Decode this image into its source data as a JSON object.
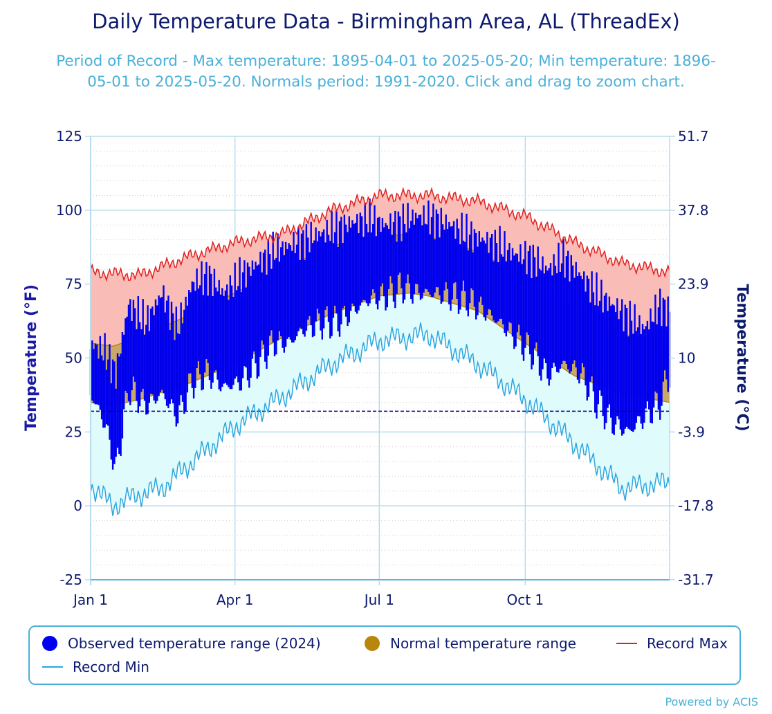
{
  "title": "Daily Temperature Data - Birmingham Area, AL (ThreadEx)",
  "subtitle": "Period of Record - Max temperature: 1895-04-01 to 2025-05-20; Min temperature: 1896-05-01 to 2025-05-20. Normals period: 1991-2020. Click and drag to zoom chart.",
  "credit": "Powered by ACIS",
  "colors": {
    "observed": "#0000ee",
    "normal_fill": "#c8a86b",
    "normal_border": "#b8860b",
    "record_max": "#e02020",
    "record_max_fill": "#f9bcb6",
    "record_min": "#2ba6df",
    "record_min_fill": "#dffbfb",
    "freezing_line": "#00008b",
    "axis_text": "#0d1a6e",
    "grid": "#b8dcec"
  },
  "legend": {
    "observed": "Observed temperature range (2024)",
    "normal": "Normal temperature range",
    "record_max": "Record Max",
    "record_min": "Record Min"
  },
  "chart_data": {
    "type": "area",
    "title": "Daily Temperature Data - Birmingham Area, AL (ThreadEx)",
    "ylabel": "Temperature (°F)",
    "ylabel_right": "Temperature (°C)",
    "ylim": [
      -25,
      125
    ],
    "y_ticks": [
      "125",
      "100",
      "75",
      "50",
      "25",
      "0",
      "-25"
    ],
    "y_ticks_right": [
      "51.7",
      "37.8",
      "23.9",
      "10",
      "-3.9",
      "-17.8",
      "-31.7"
    ],
    "x_ticks": [
      "Jan 1",
      "Apr 1",
      "Jul 1",
      "Oct 1"
    ],
    "x_range": [
      "2024-01-01",
      "2024-12-31"
    ],
    "freezing_line": 32,
    "grid": true,
    "legend_position": "bottom",
    "series": [
      {
        "name": "Record Max",
        "type": "line",
        "dates": [
          "2024-01-01",
          "2024-02-01",
          "2024-03-01",
          "2024-04-01",
          "2024-05-01",
          "2024-06-01",
          "2024-07-01",
          "2024-08-01",
          "2024-09-01",
          "2024-10-01",
          "2024-11-01",
          "2024-12-01",
          "2024-12-31"
        ],
        "values": [
          79,
          78,
          84,
          89,
          92,
          100,
          105,
          105,
          103,
          98,
          89,
          82,
          79
        ]
      },
      {
        "name": "Record Min",
        "type": "line",
        "dates": [
          "2024-01-01",
          "2024-01-15",
          "2024-02-01",
          "2024-02-15",
          "2024-03-01",
          "2024-04-01",
          "2024-05-01",
          "2024-06-01",
          "2024-07-01",
          "2024-08-01",
          "2024-09-01",
          "2024-10-01",
          "2024-11-01",
          "2024-12-01",
          "2024-12-31"
        ],
        "values": [
          7,
          0,
          4,
          6,
          13,
          27,
          37,
          48,
          56,
          58,
          48,
          36,
          21,
          6,
          8
        ]
      },
      {
        "name": "Normal temperature range",
        "type": "range",
        "dates": [
          "2024-01-01",
          "2024-01-15",
          "2024-02-01",
          "2024-03-01",
          "2024-04-01",
          "2024-05-01",
          "2024-06-01",
          "2024-07-01",
          "2024-07-20",
          "2024-08-01",
          "2024-09-01",
          "2024-10-01",
          "2024-11-01",
          "2024-12-01",
          "2024-12-31"
        ],
        "low": [
          35,
          34,
          36,
          41,
          48,
          57,
          65,
          71,
          72,
          71,
          66,
          55,
          44,
          38,
          35
        ],
        "high": [
          55,
          54,
          57,
          64,
          72,
          80,
          88,
          91,
          92,
          91,
          86,
          77,
          66,
          58,
          55
        ]
      },
      {
        "name": "Observed temperature range (2024)",
        "type": "range",
        "dates": [
          "2024-01-01",
          "2024-01-10",
          "2024-01-17",
          "2024-01-25",
          "2024-02-05",
          "2024-02-15",
          "2024-02-25",
          "2024-03-05",
          "2024-03-15",
          "2024-03-25",
          "2024-04-05",
          "2024-04-15",
          "2024-04-25",
          "2024-05-05",
          "2024-05-15",
          "2024-05-25",
          "2024-06-05",
          "2024-06-15",
          "2024-06-25",
          "2024-07-05",
          "2024-07-15",
          "2024-07-25",
          "2024-08-05",
          "2024-08-15",
          "2024-08-25",
          "2024-09-05",
          "2024-09-15",
          "2024-09-25",
          "2024-10-05",
          "2024-10-15",
          "2024-10-25",
          "2024-11-05",
          "2024-11-15",
          "2024-11-25",
          "2024-12-05",
          "2024-12-15",
          "2024-12-25",
          "2024-12-31"
        ],
        "low": [
          38,
          28,
          12,
          40,
          34,
          38,
          30,
          42,
          45,
          40,
          42,
          48,
          55,
          55,
          60,
          62,
          62,
          66,
          70,
          71,
          74,
          72,
          72,
          71,
          70,
          66,
          62,
          57,
          52,
          44,
          48,
          45,
          35,
          28,
          25,
          30,
          35,
          45
        ],
        "high": [
          55,
          52,
          45,
          68,
          62,
          72,
          60,
          75,
          78,
          72,
          78,
          82,
          86,
          88,
          90,
          92,
          94,
          96,
          97,
          95,
          96,
          98,
          97,
          95,
          92,
          90,
          88,
          85,
          84,
          80,
          84,
          78,
          72,
          68,
          64,
          60,
          68,
          66
        ]
      }
    ]
  }
}
